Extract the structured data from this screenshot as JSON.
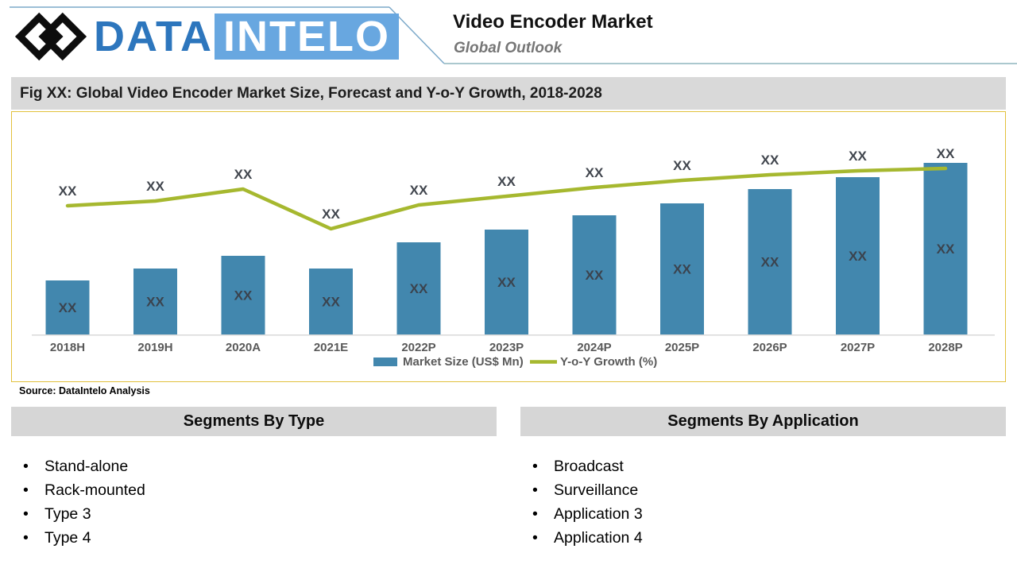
{
  "header": {
    "brand_part1": "DATA",
    "brand_part2": "INTELO",
    "title": "Video Encoder Market",
    "subtitle": "Global Outlook"
  },
  "figure": {
    "caption": "Fig XX: Global Video Encoder Market Size, Forecast and Y-o-Y Growth, 2018-2028",
    "source": "Source: DataIntelo  Analysis"
  },
  "chart_data": {
    "type": "bar+line",
    "title": "Global Video Encoder Market Size, Forecast and Y-o-Y Growth, 2018-2028",
    "categories": [
      "2018H",
      "2019H",
      "2020A",
      "2021E",
      "2022P",
      "2023P",
      "2024P",
      "2025P",
      "2026P",
      "2027P",
      "2028P"
    ],
    "series": [
      {
        "name": "Market Size (US$ Mn)",
        "type": "bar",
        "color": "#4287ae",
        "values": [
          "XX",
          "XX",
          "XX",
          "XX",
          "XX",
          "XX",
          "XX",
          "XX",
          "XX",
          "XX",
          "XX"
        ],
        "relative_heights": [
          68,
          83,
          99,
          83,
          116,
          132,
          150,
          165,
          183,
          198,
          216
        ]
      },
      {
        "name": "Y-o-Y Growth (%)",
        "type": "line",
        "color": "#a6b82f",
        "values": [
          "XX",
          "XX",
          "XX",
          "XX",
          "XX",
          "XX",
          "XX",
          "XX",
          "XX",
          "XX",
          "XX"
        ],
        "relative_heights": [
          162,
          168,
          183,
          133,
          163,
          174,
          185,
          194,
          201,
          206,
          209
        ]
      }
    ],
    "value_axis_visible": false,
    "grid": false,
    "legend_position": "bottom"
  },
  "segments_by_type": {
    "title": "Segments By Type",
    "items": [
      "Stand-alone",
      "Rack-mounted",
      "Type 3",
      "Type 4"
    ]
  },
  "segments_by_application": {
    "title": "Segments By Application",
    "items": [
      "Broadcast",
      "Surveillance",
      "Application 3",
      "Application 4"
    ]
  },
  "colors": {
    "bar": "#4287ae",
    "line": "#a6b82f",
    "chart_border": "#e2c13c",
    "caption_bar_bg": "#d9d9d9",
    "segment_header_bg": "#d6d6d6",
    "brand_blue": "#2d76bd",
    "brand_highlight": "#68a7e0",
    "header_rule_blue": "#7ca9c9",
    "header_rule_teal": "#8fb6bd"
  }
}
